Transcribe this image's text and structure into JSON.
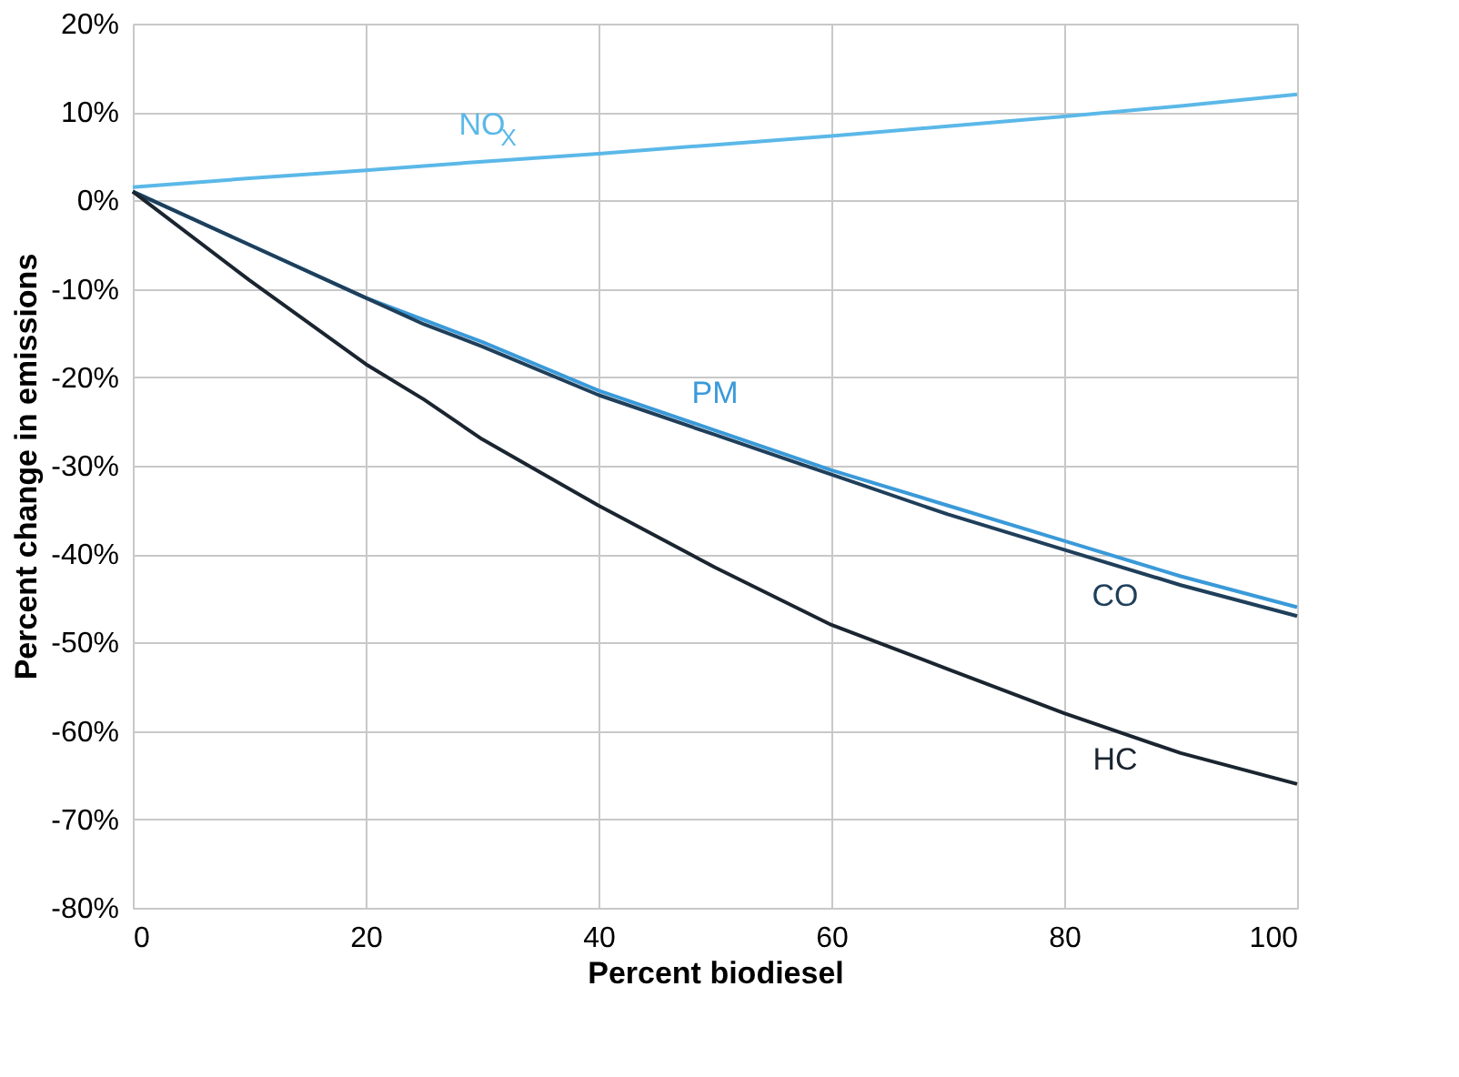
{
  "chart_data": {
    "type": "line",
    "xlabel": "Percent biodiesel",
    "ylabel": "Percent change in emissions",
    "x": [
      0,
      10,
      20,
      25,
      30,
      40,
      50,
      60,
      70,
      80,
      90,
      100
    ],
    "series": [
      {
        "name": "NO$_{X}$",
        "color": "#5bb8e8",
        "values": [
          1.5,
          2.5,
          3.4,
          3.9,
          4.4,
          5.3,
          6.3,
          7.3,
          8.4,
          9.5,
          10.7,
          12
        ]
      },
      {
        "name": "PM",
        "color": "#3a9ad9",
        "values": [
          1,
          -5,
          -11,
          -13.5,
          -16,
          -21.5,
          -26,
          -30.5,
          -34.5,
          -38.5,
          -42.5,
          -46
        ]
      },
      {
        "name": "CO",
        "color": "#1f3f5a",
        "values": [
          1,
          -5,
          -11,
          -14,
          -16.5,
          -22,
          -26.5,
          -31,
          -35.5,
          -39.5,
          -43.5,
          -47
        ]
      },
      {
        "name": "HC",
        "color": "#1a2530",
        "values": [
          1,
          -9,
          -18.5,
          -22.5,
          -27,
          -34.5,
          -41.5,
          -48,
          -53,
          -58,
          -62.5,
          -66
        ]
      }
    ],
    "xlim": [
      0,
      100
    ],
    "xticks": [
      0,
      20,
      40,
      60,
      80,
      100
    ],
    "ylim": [
      -80,
      20
    ],
    "yticks": [
      {
        "value": -80,
        "label": "-80%"
      },
      {
        "value": -70,
        "label": "-70%"
      },
      {
        "value": -60,
        "label": "-60%"
      },
      {
        "value": -50,
        "label": "-50%"
      },
      {
        "value": -40,
        "label": "-40%"
      },
      {
        "value": -30,
        "label": "-30%"
      },
      {
        "value": -20,
        "label": "-20%"
      },
      {
        "value": -10,
        "label": "-10%"
      },
      {
        "value": 0,
        "label": "0%"
      },
      {
        "value": 10,
        "label": "10%"
      },
      {
        "value": 20,
        "label": "20%"
      }
    ],
    "grid": true,
    "marker": "none",
    "line_style": "solid"
  }
}
